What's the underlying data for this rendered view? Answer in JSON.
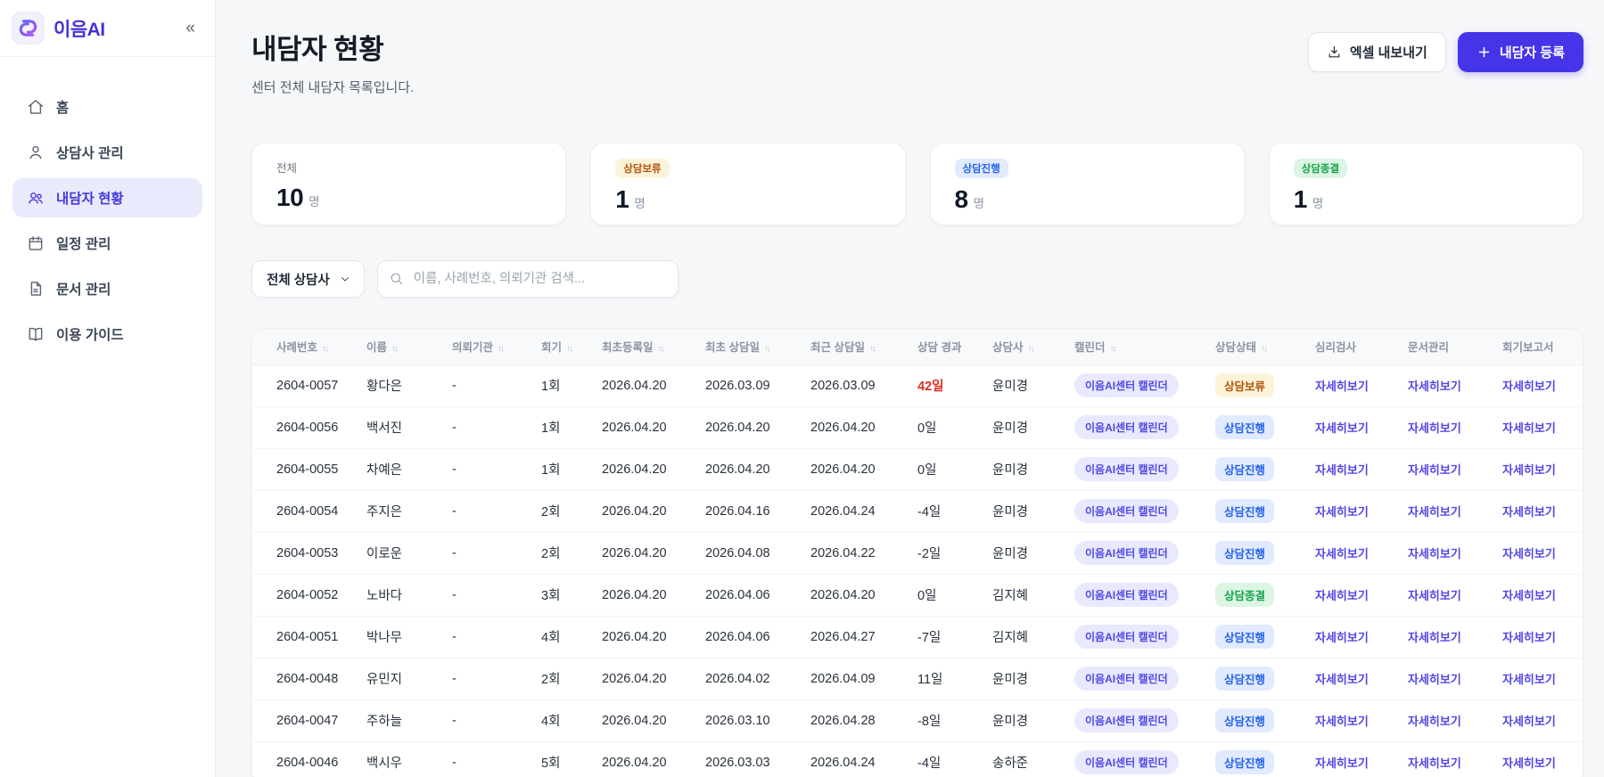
{
  "colors": {
    "primary": "#4634e8",
    "link": "#5246e5",
    "overdue": "#d92d20"
  },
  "sidebar": {
    "logo_text": "이음AI",
    "collapse_label": "«",
    "items": [
      {
        "key": "home",
        "label": "홈",
        "icon": "home-icon",
        "active": false
      },
      {
        "key": "counselors",
        "label": "상담사 관리",
        "icon": "counselor-icon",
        "active": false
      },
      {
        "key": "clients",
        "label": "내담자 현황",
        "icon": "clients-icon",
        "active": true
      },
      {
        "key": "schedule",
        "label": "일정 관리",
        "icon": "calendar-icon",
        "active": false
      },
      {
        "key": "documents",
        "label": "문서 관리",
        "icon": "document-icon",
        "active": false
      },
      {
        "key": "guide",
        "label": "이용 가이드",
        "icon": "guide-icon",
        "active": false
      }
    ]
  },
  "page": {
    "title": "내담자 현황",
    "subtitle": "센터 전체 내담자 목록입니다.",
    "export_label": "엑셀 내보내기",
    "register_label": "내담자 등록"
  },
  "stats": [
    {
      "label": "전체",
      "style": "plain",
      "value": "10",
      "unit": "명"
    },
    {
      "label": "상담보류",
      "style": "hold",
      "value": "1",
      "unit": "명"
    },
    {
      "label": "상담진행",
      "style": "progress",
      "value": "8",
      "unit": "명"
    },
    {
      "label": "상담종결",
      "style": "closed",
      "value": "1",
      "unit": "명"
    }
  ],
  "filter": {
    "counselor_select": "전체 상담사",
    "search_placeholder": "이름, 사례번호, 의뢰기관 검색..."
  },
  "table": {
    "columns": [
      {
        "key": "case_no",
        "label": "사례번호",
        "sortable": true
      },
      {
        "key": "name",
        "label": "이름",
        "sortable": true
      },
      {
        "key": "agency",
        "label": "의뢰기관",
        "sortable": true
      },
      {
        "key": "sessions",
        "label": "회기",
        "sortable": true
      },
      {
        "key": "registered",
        "label": "최초등록일",
        "sortable": true
      },
      {
        "key": "first_session",
        "label": "최초 상담일",
        "sortable": true
      },
      {
        "key": "recent_session",
        "label": "최근 상담일",
        "sortable": true
      },
      {
        "key": "elapsed",
        "label": "상담 경과",
        "sortable": false
      },
      {
        "key": "counselor",
        "label": "상담사",
        "sortable": true
      },
      {
        "key": "calendar",
        "label": "캘린더",
        "sortable": true
      },
      {
        "key": "status",
        "label": "상담상태",
        "sortable": true
      },
      {
        "key": "test",
        "label": "심리검사",
        "sortable": false
      },
      {
        "key": "docs",
        "label": "문서관리",
        "sortable": false
      },
      {
        "key": "report",
        "label": "회기보고서",
        "sortable": false
      }
    ],
    "calendar_badge": "이음AI센터 캘린더",
    "detail_label": "자세히보기",
    "status_styles": {
      "상담보류": "hold",
      "상담진행": "progress",
      "상담종결": "closed"
    },
    "rows": [
      {
        "case_no": "2604-0057",
        "name": "황다은",
        "agency": "-",
        "sessions": "1회",
        "registered": "2026.04.20",
        "first_session": "2026.03.09",
        "recent_session": "2026.03.09",
        "elapsed": "42일",
        "elapsed_overdue": true,
        "counselor": "윤미경",
        "status": "상담보류"
      },
      {
        "case_no": "2604-0056",
        "name": "백서진",
        "agency": "-",
        "sessions": "1회",
        "registered": "2026.04.20",
        "first_session": "2026.04.20",
        "recent_session": "2026.04.20",
        "elapsed": "0일",
        "elapsed_overdue": false,
        "counselor": "윤미경",
        "status": "상담진행"
      },
      {
        "case_no": "2604-0055",
        "name": "차예은",
        "agency": "-",
        "sessions": "1회",
        "registered": "2026.04.20",
        "first_session": "2026.04.20",
        "recent_session": "2026.04.20",
        "elapsed": "0일",
        "elapsed_overdue": false,
        "counselor": "윤미경",
        "status": "상담진행"
      },
      {
        "case_no": "2604-0054",
        "name": "주지은",
        "agency": "-",
        "sessions": "2회",
        "registered": "2026.04.20",
        "first_session": "2026.04.16",
        "recent_session": "2026.04.24",
        "elapsed": "-4일",
        "elapsed_overdue": false,
        "counselor": "윤미경",
        "status": "상담진행"
      },
      {
        "case_no": "2604-0053",
        "name": "이로운",
        "agency": "-",
        "sessions": "2회",
        "registered": "2026.04.20",
        "first_session": "2026.04.08",
        "recent_session": "2026.04.22",
        "elapsed": "-2일",
        "elapsed_overdue": false,
        "counselor": "윤미경",
        "status": "상담진행"
      },
      {
        "case_no": "2604-0052",
        "name": "노바다",
        "agency": "-",
        "sessions": "3회",
        "registered": "2026.04.20",
        "first_session": "2026.04.06",
        "recent_session": "2026.04.20",
        "elapsed": "0일",
        "elapsed_overdue": false,
        "counselor": "김지혜",
        "status": "상담종결"
      },
      {
        "case_no": "2604-0051",
        "name": "박나무",
        "agency": "-",
        "sessions": "4회",
        "registered": "2026.04.20",
        "first_session": "2026.04.06",
        "recent_session": "2026.04.27",
        "elapsed": "-7일",
        "elapsed_overdue": false,
        "counselor": "김지혜",
        "status": "상담진행"
      },
      {
        "case_no": "2604-0048",
        "name": "유민지",
        "agency": "-",
        "sessions": "2회",
        "registered": "2026.04.20",
        "first_session": "2026.04.02",
        "recent_session": "2026.04.09",
        "elapsed": "11일",
        "elapsed_overdue": false,
        "counselor": "윤미경",
        "status": "상담진행"
      },
      {
        "case_no": "2604-0047",
        "name": "주하늘",
        "agency": "-",
        "sessions": "4회",
        "registered": "2026.04.20",
        "first_session": "2026.03.10",
        "recent_session": "2026.04.28",
        "elapsed": "-8일",
        "elapsed_overdue": false,
        "counselor": "윤미경",
        "status": "상담진행"
      },
      {
        "case_no": "2604-0046",
        "name": "백시우",
        "agency": "-",
        "sessions": "5회",
        "registered": "2026.04.20",
        "first_session": "2026.03.03",
        "recent_session": "2026.04.24",
        "elapsed": "-4일",
        "elapsed_overdue": false,
        "counselor": "송하준",
        "status": "상담진행"
      }
    ]
  }
}
